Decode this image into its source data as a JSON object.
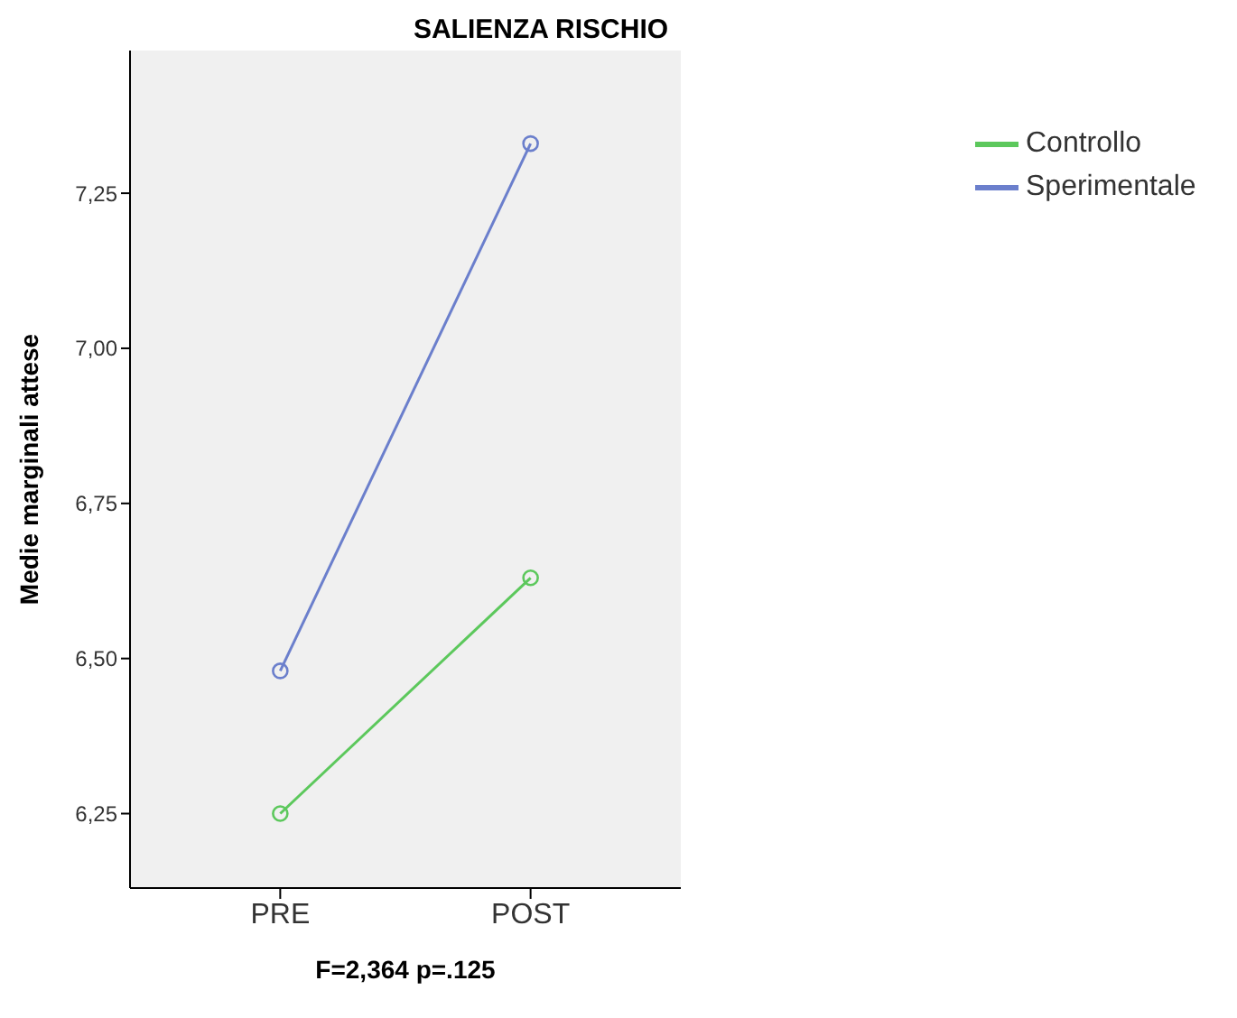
{
  "chart_data": {
    "type": "line",
    "title": "SALIENZA RISCHIO",
    "xlabel": "F=2,364  p=.125",
    "ylabel": "Medie marginali attese",
    "categories": [
      "PRE",
      "POST"
    ],
    "series": [
      {
        "name": "Sperimentale",
        "color": "#6b7fcc",
        "values": [
          6.48,
          7.33
        ]
      },
      {
        "name": "Controllo",
        "color": "#5cc85c",
        "values": [
          6.25,
          6.63
        ]
      }
    ],
    "ylim": [
      6.13,
      7.48
    ],
    "yticks": [
      {
        "value": 6.25,
        "label": "6,25"
      },
      {
        "value": 6.5,
        "label": "6,50"
      },
      {
        "value": 6.75,
        "label": "6,75"
      },
      {
        "value": 7,
        "label": "7,00"
      },
      {
        "value": 7.25,
        "label": "7,25"
      }
    ],
    "grid": false,
    "legend": "top right",
    "marker": "circle",
    "line_style": "solid"
  }
}
